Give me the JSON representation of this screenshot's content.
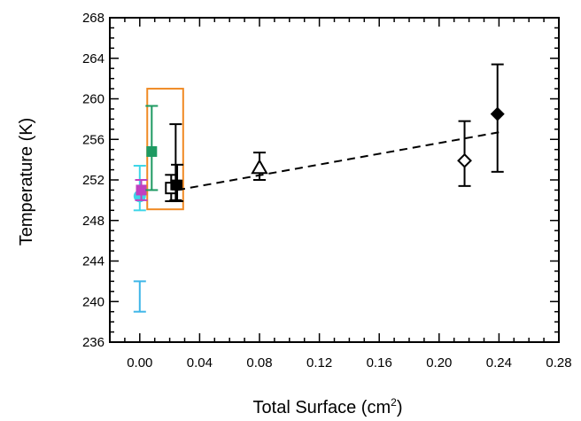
{
  "chart_data": {
    "type": "scatter",
    "xlabel": "Total Surface (cm",
    "xlabel_superscript": "2",
    "xlabel_suffix": ")",
    "ylabel": "Temperature (K)",
    "xlim": [
      -0.02,
      0.28
    ],
    "ylim": [
      236,
      268
    ],
    "x_ticks": [
      "0.00",
      "0.04",
      "0.08",
      "0.12",
      "0.16",
      "0.20",
      "0.24",
      "0.28"
    ],
    "y_ticks": [
      "236",
      "240",
      "244",
      "248",
      "252",
      "256",
      "260",
      "264",
      "268"
    ],
    "grid": false,
    "points": [
      {
        "x": 0.0,
        "y": 240.5,
        "err_low": 239.0,
        "err_high": 242.0,
        "marker": "errorbar-only",
        "color": "#3fb6e8"
      },
      {
        "x": 0.0,
        "y": 250.4,
        "err_low": 249.0,
        "err_high": 253.4,
        "marker": "circle",
        "color": "#3fd6e8"
      },
      {
        "x": 0.001,
        "y": 251.0,
        "err_low": 250.0,
        "err_high": 252.0,
        "marker": "square-filled",
        "color": "#c040c0"
      },
      {
        "x": 0.008,
        "y": 254.8,
        "err_low": 251.0,
        "err_high": 259.3,
        "marker": "square-filled",
        "color": "#1e9a62"
      },
      {
        "x": 0.021,
        "y": 251.2,
        "err_low": 249.9,
        "err_high": 252.5,
        "marker": "square-open",
        "color": "#000000"
      },
      {
        "x": 0.024,
        "y": 251.5,
        "err_low": 250.0,
        "err_high": 257.5,
        "marker": "square-filled",
        "color": "#000000"
      },
      {
        "x": 0.025,
        "y": 251.5,
        "err_low": 249.9,
        "err_high": 253.5,
        "marker": "square-filled",
        "color": "#000000"
      },
      {
        "x": 0.08,
        "y": 253.2,
        "err_low": 252.0,
        "err_high": 254.7,
        "marker": "triangle-open",
        "color": "#000000"
      },
      {
        "x": 0.217,
        "y": 253.9,
        "err_low": 251.4,
        "err_high": 257.8,
        "marker": "diamond-open",
        "color": "#000000"
      },
      {
        "x": 0.239,
        "y": 258.5,
        "err_low": 252.8,
        "err_high": 263.4,
        "marker": "diamond-filled",
        "color": "#000000"
      }
    ],
    "fit_line": {
      "style": "dashed",
      "x": [
        0.025,
        0.24
      ],
      "y": [
        251.0,
        256.7
      ],
      "color": "#000000"
    },
    "highlight_box": {
      "x": [
        0.005,
        0.029
      ],
      "y": [
        249.1,
        261.0
      ],
      "color": "#f08a24"
    }
  }
}
